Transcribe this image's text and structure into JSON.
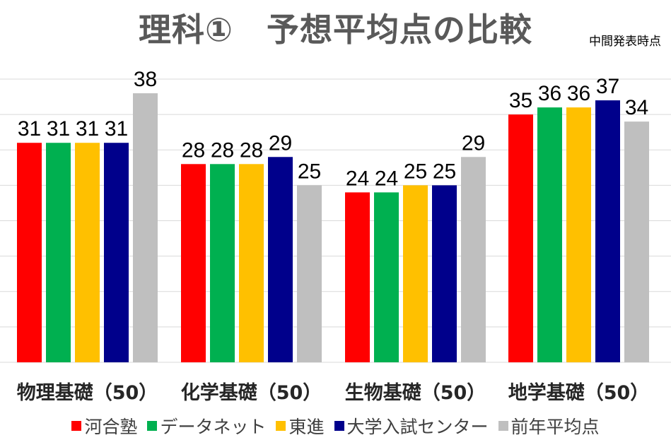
{
  "title": "理科①　予想平均点の比較",
  "subtitle": "中間発表時点",
  "colors": {
    "kawai": "#FF0000",
    "data_net": "#00B050",
    "toshin": "#FFC000",
    "center": "#00008B",
    "prev": "#BFBFBF",
    "grid": "#D9D9D9",
    "label": "#000000"
  },
  "chart_data": {
    "type": "bar",
    "categories": [
      "物理基礎（50）",
      "化学基礎（50）",
      "生物基礎（50）",
      "地学基礎（50）"
    ],
    "series": [
      {
        "name": "河合塾",
        "color": "#FF0000",
        "values": [
          31,
          28,
          24,
          35
        ]
      },
      {
        "name": "データネット",
        "color": "#00B050",
        "values": [
          31,
          28,
          24,
          36
        ]
      },
      {
        "name": "東進",
        "color": "#FFC000",
        "values": [
          31,
          28,
          25,
          36
        ]
      },
      {
        "name": "大学入試センター",
        "color": "#00008B",
        "values": [
          31,
          29,
          25,
          37
        ]
      },
      {
        "name": "前年平均点",
        "color": "#BFBFBF",
        "values": [
          38,
          25,
          29,
          34
        ]
      }
    ],
    "ylim": [
      0,
      40
    ],
    "grid": true,
    "legend": "bottom"
  }
}
